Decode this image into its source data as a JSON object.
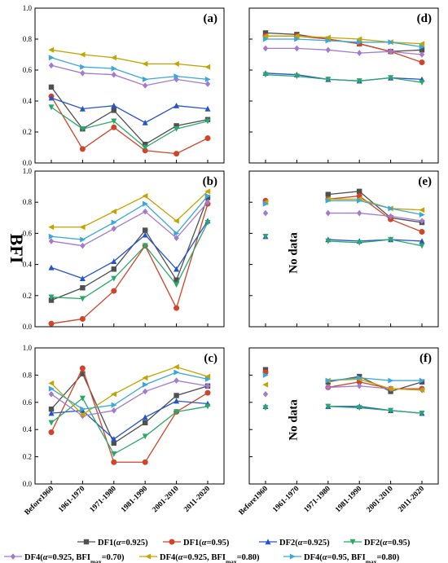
{
  "chart_data": {
    "type": "line",
    "ylabel": "BFI",
    "categories": [
      "Before1960",
      "1961-1970",
      "1971-1980",
      "1981-1990",
      "2001-2010",
      "2011-2020"
    ],
    "ylim": [
      0.0,
      1.0
    ],
    "yticks": [
      "0.0",
      "0.2",
      "0.4",
      "0.6",
      "0.8",
      "1.0"
    ],
    "no_data_text": "No data",
    "legend": {
      "placement": "bottom",
      "entries": [
        {
          "pre": "DF1(",
          "alpha": "α",
          "post": "=0.925)",
          "sub": "",
          "tail": ""
        },
        {
          "pre": "DF1(",
          "alpha": "α",
          "post": "=0.95)",
          "sub": "",
          "tail": ""
        },
        {
          "pre": "DF2(",
          "alpha": "α",
          "post": "=0.925)",
          "sub": "",
          "tail": ""
        },
        {
          "pre": "DF2(",
          "alpha": "α",
          "post": "=0.95)",
          "sub": "",
          "tail": ""
        },
        {
          "pre": "DF4(",
          "alpha": "α",
          "post": "=0.925, BFI",
          "sub": "max",
          "tail": "=0.70)"
        },
        {
          "pre": "DF4(",
          "alpha": "α",
          "post": "=0.925, BFI",
          "sub": "max",
          "tail": "=0.80)"
        },
        {
          "pre": "DF4(",
          "alpha": "α",
          "post": "=0.95, BFI",
          "sub": "max",
          "tail": "=0.80)"
        }
      ]
    },
    "styles": [
      {
        "color": "#505050",
        "marker": "square"
      },
      {
        "color": "#d0452a",
        "marker": "circle"
      },
      {
        "color": "#2654c8",
        "marker": "triangle-up"
      },
      {
        "color": "#2aa86a",
        "marker": "triangle-down"
      },
      {
        "color": "#a37ad0",
        "marker": "diamond"
      },
      {
        "color": "#c4a400",
        "marker": "triangle-left"
      },
      {
        "color": "#3aa8d8",
        "marker": "triangle-right"
      }
    ],
    "panels": [
      {
        "id": "a",
        "label": "(a)",
        "no_data": false,
        "series": [
          {
            "values": [
              0.49,
              0.22,
              0.34,
              0.12,
              0.24,
              0.28
            ]
          },
          {
            "values": [
              0.43,
              0.09,
              0.23,
              0.08,
              0.06,
              0.16
            ]
          },
          {
            "values": [
              0.42,
              0.35,
              0.37,
              0.26,
              0.37,
              0.35
            ]
          },
          {
            "values": [
              0.36,
              0.22,
              0.27,
              0.1,
              0.22,
              0.27
            ]
          },
          {
            "values": [
              0.63,
              0.58,
              0.57,
              0.5,
              0.54,
              0.51
            ]
          },
          {
            "values": [
              0.73,
              0.7,
              0.68,
              0.64,
              0.64,
              0.62
            ]
          },
          {
            "values": [
              0.68,
              0.62,
              0.61,
              0.54,
              0.56,
              0.54
            ]
          }
        ]
      },
      {
        "id": "d",
        "label": "(d)",
        "no_data": false,
        "series": [
          {
            "values": [
              0.84,
              0.83,
              0.8,
              0.77,
              0.72,
              0.73
            ]
          },
          {
            "values": [
              0.82,
              0.82,
              0.8,
              0.77,
              0.72,
              0.65
            ]
          },
          {
            "values": [
              0.58,
              0.57,
              0.54,
              0.53,
              0.55,
              0.54
            ]
          },
          {
            "values": [
              0.57,
              0.56,
              0.54,
              0.53,
              0.55,
              0.52
            ]
          },
          {
            "values": [
              0.74,
              0.74,
              0.73,
              0.71,
              0.72,
              0.7
            ]
          },
          {
            "values": [
              0.82,
              0.82,
              0.81,
              0.8,
              0.78,
              0.77
            ]
          },
          {
            "values": [
              0.8,
              0.8,
              0.79,
              0.78,
              0.78,
              0.75
            ]
          }
        ]
      },
      {
        "id": "b",
        "label": "(b)",
        "no_data": false,
        "series": [
          {
            "values": [
              0.17,
              0.25,
              0.37,
              0.62,
              0.3,
              0.83
            ]
          },
          {
            "values": [
              0.02,
              0.05,
              0.23,
              0.52,
              0.12,
              0.79
            ]
          },
          {
            "values": [
              0.38,
              0.31,
              0.42,
              0.59,
              0.37,
              0.68
            ]
          },
          {
            "values": [
              0.19,
              0.18,
              0.31,
              0.52,
              0.27,
              0.67
            ]
          },
          {
            "values": [
              0.55,
              0.52,
              0.63,
              0.74,
              0.57,
              0.8
            ]
          },
          {
            "values": [
              0.64,
              0.64,
              0.74,
              0.84,
              0.68,
              0.87
            ]
          },
          {
            "values": [
              0.58,
              0.56,
              0.67,
              0.79,
              0.6,
              0.84
            ]
          }
        ]
      },
      {
        "id": "e",
        "label": "(e)",
        "no_data": true,
        "series": [
          {
            "values": [
              0.8,
              null,
              0.85,
              0.87,
              0.7,
              0.67
            ]
          },
          {
            "values": [
              0.81,
              null,
              0.82,
              0.84,
              0.69,
              0.61
            ]
          },
          {
            "values": [
              0.58,
              null,
              0.56,
              0.55,
              0.56,
              0.55
            ]
          },
          {
            "values": [
              0.58,
              null,
              0.55,
              0.54,
              0.56,
              0.52
            ]
          },
          {
            "values": [
              0.73,
              null,
              0.73,
              0.73,
              0.71,
              0.68
            ]
          },
          {
            "values": [
              0.8,
              null,
              0.82,
              0.82,
              0.76,
              0.75
            ]
          },
          {
            "values": [
              0.79,
              null,
              0.81,
              0.81,
              0.76,
              0.72
            ]
          }
        ]
      },
      {
        "id": "c",
        "label": "(c)",
        "no_data": false,
        "series": [
          {
            "values": [
              0.55,
              0.81,
              0.3,
              0.45,
              0.65,
              0.72
            ]
          },
          {
            "values": [
              0.38,
              0.85,
              0.16,
              0.16,
              0.53,
              0.67
            ]
          },
          {
            "values": [
              0.52,
              0.54,
              0.33,
              0.49,
              0.61,
              0.59
            ]
          },
          {
            "values": [
              0.45,
              0.63,
              0.22,
              0.35,
              0.53,
              0.57
            ]
          },
          {
            "values": [
              0.66,
              0.5,
              0.54,
              0.68,
              0.76,
              0.72
            ]
          },
          {
            "values": [
              0.74,
              0.51,
              0.66,
              0.78,
              0.86,
              0.79
            ]
          },
          {
            "values": [
              0.7,
              0.55,
              0.58,
              0.73,
              0.82,
              0.77
            ]
          }
        ]
      },
      {
        "id": "f",
        "label": "(f)",
        "no_data": true,
        "series": [
          {
            "values": [
              0.84,
              null,
              0.75,
              0.79,
              0.68,
              0.75
            ]
          },
          {
            "values": [
              0.82,
              null,
              0.71,
              0.75,
              0.7,
              0.7
            ]
          },
          {
            "values": [
              0.57,
              null,
              0.57,
              0.57,
              0.54,
              0.52
            ]
          },
          {
            "values": [
              0.56,
              null,
              0.57,
              0.56,
              0.54,
              0.52
            ]
          },
          {
            "values": [
              0.66,
              null,
              0.71,
              0.72,
              0.7,
              0.69
            ]
          },
          {
            "values": [
              0.73,
              null,
              0.76,
              0.77,
              0.7,
              0.69
            ]
          },
          {
            "values": [
              0.8,
              null,
              0.76,
              0.78,
              0.76,
              0.76
            ]
          }
        ]
      }
    ]
  }
}
